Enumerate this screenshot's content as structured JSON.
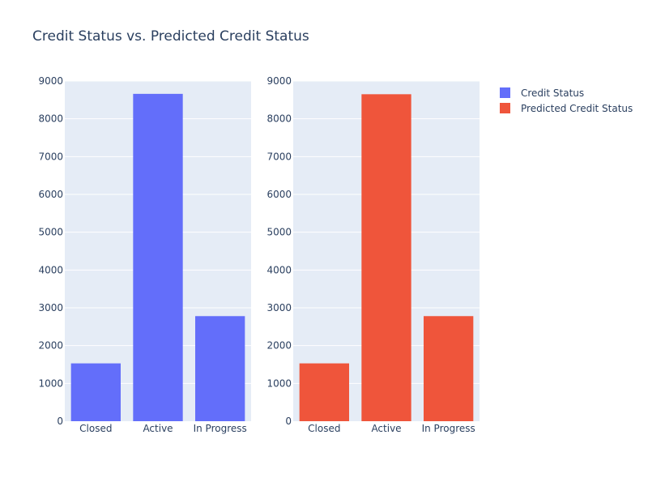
{
  "chart_data": {
    "title": "Credit Status vs. Predicted Credit Status",
    "type": "bar",
    "legend_position": "top-right",
    "grid": true,
    "panels": [
      {
        "type": "bar",
        "categories": [
          "Closed",
          "Active",
          "In Progress"
        ],
        "series": [
          {
            "name": "Credit Status",
            "color": "#636efa",
            "values": [
              1530,
              8660,
              2780
            ]
          }
        ],
        "ylim": [
          0,
          9000
        ],
        "yticks": [
          0,
          1000,
          2000,
          3000,
          4000,
          5000,
          6000,
          7000,
          8000,
          9000
        ]
      },
      {
        "type": "bar",
        "categories": [
          "Closed",
          "Active",
          "In Progress"
        ],
        "series": [
          {
            "name": "Predicted Credit Status",
            "color": "#ef553b",
            "values": [
              1530,
              8650,
              2780
            ]
          }
        ],
        "ylim": [
          0,
          9000
        ],
        "yticks": [
          0,
          1000,
          2000,
          3000,
          4000,
          5000,
          6000,
          7000,
          8000,
          9000
        ]
      }
    ],
    "legend": [
      {
        "name": "Credit Status",
        "color": "#636efa"
      },
      {
        "name": "Predicted Credit Status",
        "color": "#ef553b"
      }
    ]
  },
  "colors": {
    "plot_background": "#e5ecf6",
    "gridline": "#ffffff",
    "text": "#2a3f5f"
  }
}
